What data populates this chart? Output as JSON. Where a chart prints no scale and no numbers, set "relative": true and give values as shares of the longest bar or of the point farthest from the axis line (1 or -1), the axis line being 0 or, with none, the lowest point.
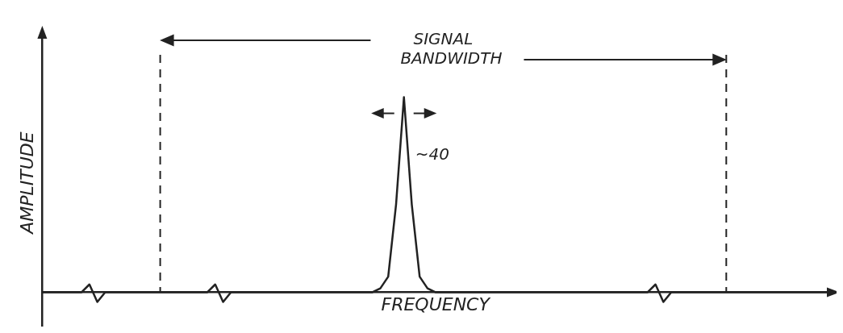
{
  "chart_data": {
    "type": "line",
    "relative": true,
    "xlabel": "FREQUENCY",
    "ylabel": "AMPLITUDE",
    "marker": "none",
    "color": "#222222",
    "categories": [
      null,
      null,
      null,
      null,
      null,
      null,
      null,
      null,
      null,
      null,
      null,
      null,
      null,
      null,
      null,
      null,
      null,
      null,
      null,
      null,
      null,
      null,
      null,
      null,
      null,
      null,
      null,
      null,
      null,
      null,
      null,
      null,
      null,
      null,
      null,
      null,
      null,
      null,
      null,
      null,
      null,
      null,
      null,
      null,
      null,
      null,
      null,
      null,
      null,
      null,
      null,
      null,
      null,
      null,
      null,
      null,
      null,
      null,
      null,
      null,
      null,
      null,
      null,
      null,
      null,
      null,
      null,
      null,
      null,
      null,
      null,
      null,
      null,
      null,
      null,
      null,
      null,
      null,
      null,
      null,
      null,
      null,
      null,
      null,
      null,
      null,
      null,
      null,
      null,
      null,
      null,
      null,
      null,
      null,
      null,
      null,
      null,
      null,
      null,
      null,
      null
    ],
    "values": [
      0,
      0,
      0,
      0,
      0,
      0,
      0.04,
      -0.05,
      0,
      0,
      0,
      0,
      0,
      0,
      0,
      0,
      0,
      0,
      0,
      0,
      0,
      0,
      0.04,
      -0.05,
      0,
      0,
      0,
      0,
      0,
      0,
      0,
      0,
      0,
      0,
      0,
      0,
      0,
      0,
      0,
      0,
      0,
      0,
      0,
      0.02,
      0.08,
      0.45,
      1,
      0.45,
      0.08,
      0.02,
      0,
      0,
      0,
      0,
      0,
      0,
      0,
      0,
      0,
      0,
      0,
      0,
      0,
      0,
      0,
      0,
      0,
      0,
      0,
      0,
      0,
      0,
      0,
      0,
      0,
      0,
      0,
      0,
      0.04,
      -0.05,
      0,
      0,
      0,
      0,
      0,
      0,
      0,
      0,
      0,
      0,
      0,
      0,
      0,
      0,
      0,
      0,
      0,
      0,
      0,
      0,
      0
    ],
    "annotations": [
      "SIGNAL BANDWIDTH",
      "~40"
    ]
  }
}
